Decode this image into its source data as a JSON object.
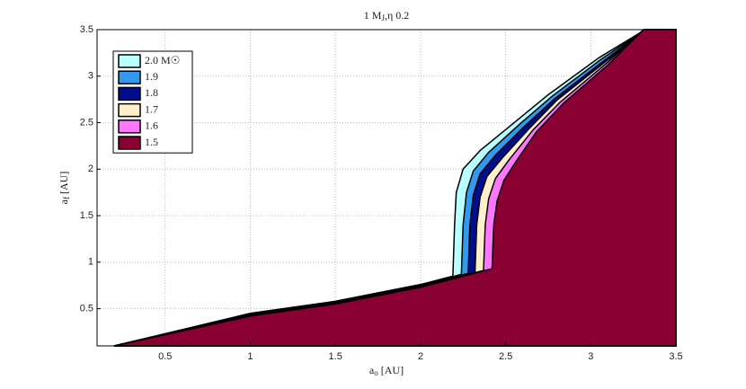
{
  "chart_data": {
    "type": "area",
    "title": {
      "text": "1 M",
      "sub": "J",
      "rest": ",η  0.2"
    },
    "x_label": {
      "text": "a",
      "sub": "o",
      "rest": " [AU]"
    },
    "y_label": {
      "text": "a",
      "sub": "f",
      "rest": " [AU]"
    },
    "xlim": [
      0.1,
      3.5
    ],
    "ylim": [
      0.1,
      3.5
    ],
    "xticks": [
      0.5,
      1,
      1.5,
      2,
      2.5,
      3,
      3.5
    ],
    "yticks": [
      0.5,
      1,
      1.5,
      2,
      2.5,
      3,
      3.5
    ],
    "grid": true,
    "legend": "upper-left",
    "series": [
      {
        "name": "2.0 M☉",
        "color": "#b8ffff",
        "x": [
          0.2,
          1,
          1.5,
          2,
          2.19,
          2.2,
          2.21,
          2.25,
          2.35,
          2.55,
          2.75,
          3.05,
          3.32,
          3.5
        ],
        "values": [
          0.1,
          0.45,
          0.58,
          0.76,
          0.85,
          1.4,
          1.75,
          2.0,
          2.2,
          2.5,
          2.8,
          3.2,
          3.5,
          3.5
        ]
      },
      {
        "name": "1.9",
        "color": "#3399ee",
        "x": [
          0.2,
          1,
          1.5,
          2,
          2.24,
          2.25,
          2.27,
          2.31,
          2.4,
          2.58,
          2.77,
          3.06,
          3.32,
          3.5
        ],
        "values": [
          0.1,
          0.44,
          0.57,
          0.75,
          0.87,
          1.4,
          1.75,
          1.98,
          2.18,
          2.48,
          2.78,
          3.18,
          3.5,
          3.5
        ]
      },
      {
        "name": "1.8",
        "color": "#000d8c",
        "x": [
          0.2,
          1,
          1.5,
          2,
          2.28,
          2.29,
          2.31,
          2.35,
          2.44,
          2.61,
          2.79,
          3.08,
          3.32,
          3.5
        ],
        "values": [
          0.1,
          0.44,
          0.57,
          0.75,
          0.88,
          1.4,
          1.72,
          1.95,
          2.15,
          2.46,
          2.76,
          3.17,
          3.5,
          3.5
        ]
      },
      {
        "name": "1.7",
        "color": "#fff0cc",
        "x": [
          0.2,
          1,
          1.5,
          2,
          2.32,
          2.33,
          2.35,
          2.39,
          2.48,
          2.64,
          2.8,
          3.09,
          3.32,
          3.5
        ],
        "values": [
          0.1,
          0.43,
          0.56,
          0.74,
          0.89,
          1.4,
          1.7,
          1.92,
          2.12,
          2.44,
          2.74,
          3.16,
          3.5,
          3.5
        ]
      },
      {
        "name": "1.6",
        "color": "#ff77ff",
        "x": [
          0.2,
          1,
          1.5,
          2,
          2.37,
          2.38,
          2.4,
          2.44,
          2.52,
          2.66,
          2.82,
          3.1,
          3.31,
          3.5
        ],
        "values": [
          0.1,
          0.43,
          0.56,
          0.74,
          0.91,
          1.4,
          1.68,
          1.9,
          2.1,
          2.42,
          2.72,
          3.15,
          3.5,
          3.5
        ]
      },
      {
        "name": "1.5",
        "color": "#8b0033",
        "x": [
          0.2,
          1,
          1.5,
          2,
          2.42,
          2.43,
          2.45,
          2.49,
          2.56,
          2.68,
          2.84,
          3.1,
          3.31,
          3.5
        ],
        "values": [
          0.1,
          0.42,
          0.55,
          0.73,
          0.93,
          1.4,
          1.66,
          1.88,
          2.08,
          2.4,
          2.71,
          3.12,
          3.5,
          3.5
        ]
      }
    ]
  }
}
